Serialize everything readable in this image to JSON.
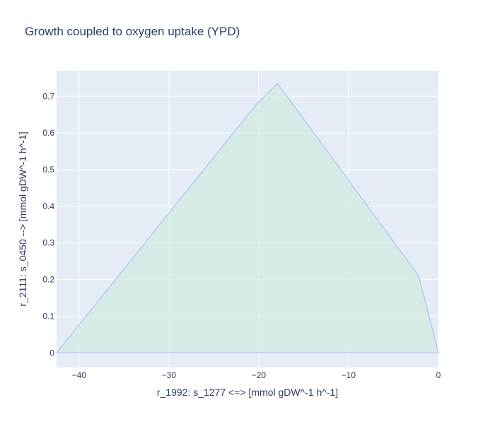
{
  "chart_data": {
    "type": "area",
    "title": "Growth coupled to oxygen uptake (YPD)",
    "xlabel": "r_1992: s_1277 <=>  [mmol gDW^-1 h^-1]",
    "ylabel": "r_2111: s_0450 -->  [mmol gDW^-1 h^-1]",
    "xlim": [
      -42.5,
      0
    ],
    "ylim": [
      -0.04,
      0.77
    ],
    "xticks": [
      -40,
      -30,
      -20,
      -10,
      0
    ],
    "xtick_labels": [
      "−40",
      "−30",
      "−20",
      "−10",
      "0"
    ],
    "yticks": [
      0,
      0.1,
      0.2,
      0.3,
      0.4,
      0.5,
      0.6,
      0.7
    ],
    "ytick_labels": [
      "0",
      "0.1",
      "0.2",
      "0.3",
      "0.4",
      "0.5",
      "0.6",
      "0.7"
    ],
    "grid": true,
    "series": [
      {
        "x": [
          -42.5,
          -20.2,
          -17.9,
          -2.2,
          0,
          -42.5
        ],
        "y": [
          0,
          0.68,
          0.735,
          0.21,
          0,
          0
        ],
        "fill": "toself"
      }
    ],
    "colors": {
      "plot_bg": "#e5ecf6",
      "grid": "#ffffff",
      "line": "#b8c6f5",
      "fill": "#d2ebe0",
      "text": "#2a3f5f"
    }
  }
}
